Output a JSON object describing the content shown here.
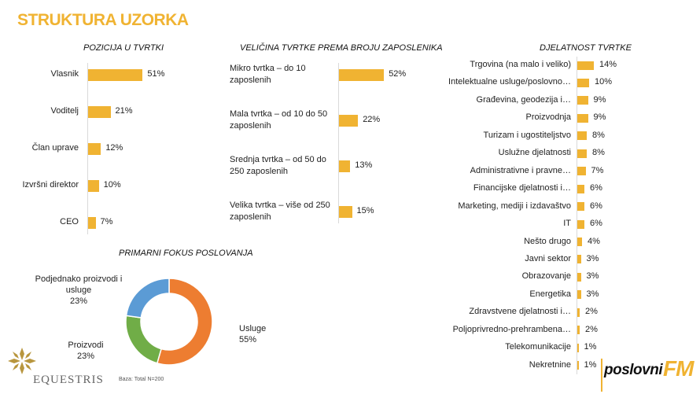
{
  "page_title": "STRUKTURA UZORKA",
  "colors": {
    "accent": "#F0B332",
    "orange": "#ED7D31",
    "green": "#70AD47",
    "blue": "#5B9BD5",
    "title": "#F0B332"
  },
  "note": "Baza: Total N=200",
  "logos": {
    "left": "EQUESTRIS",
    "right_word": "poslovni",
    "right_fm": "FM"
  },
  "chart_data": [
    {
      "type": "bar",
      "orientation": "horizontal",
      "title": "POZICIJA U TVRTKI",
      "categories": [
        "Vlasnik",
        "Voditelj",
        "Član uprave",
        "Izvršni direktor",
        "CEO"
      ],
      "values": [
        51,
        21,
        12,
        10,
        7
      ],
      "value_labels": [
        "51%",
        "21%",
        "12%",
        "10%",
        "7%"
      ],
      "unit": "%",
      "grid": false
    },
    {
      "type": "bar",
      "orientation": "horizontal",
      "title": "VELIČINA TVRTKE PREMA BROJU ZAPOSLENIKA",
      "categories": [
        "Mikro tvrtka – do 10 zaposlenih",
        "Mala tvrtka – od 10 do 50 zaposlenih",
        "Srednja tvrtka – od 50 do 250 zaposlenih",
        "Velika tvrtka – više od 250 zaposlenih"
      ],
      "values": [
        52,
        22,
        13,
        15
      ],
      "value_labels": [
        "52%",
        "22%",
        "13%",
        "15%"
      ],
      "unit": "%",
      "grid": false
    },
    {
      "type": "bar",
      "orientation": "horizontal",
      "title": "DJELATNOST TVRTKE",
      "categories": [
        "Trgovina (na malo i veliko)",
        "Intelektualne usluge/poslovno…",
        "Građevina, geodezija i…",
        "Proizvodnja",
        "Turizam i ugostiteljstvo",
        "Uslužne djelatnosti",
        "Administrativne i pravne…",
        "Financijske djelatnosti i…",
        "Marketing, mediji i izdavaštvo",
        "IT",
        "Nešto drugo",
        "Javni sektor",
        "Obrazovanje",
        "Energetika",
        "Zdravstvene djelatnosti i…",
        "Poljoprivredno-prehrambena…",
        "Telekomunikacije",
        "Nekretnine"
      ],
      "values": [
        14,
        10,
        9,
        9,
        8,
        8,
        7,
        6,
        6,
        6,
        4,
        3,
        3,
        3,
        2,
        2,
        1,
        1
      ],
      "value_labels": [
        "14%",
        "10%",
        "9%",
        "9%",
        "8%",
        "8%",
        "7%",
        "6%",
        "6%",
        "6%",
        "4%",
        "3%",
        "3%",
        "3%",
        "2%",
        "2%",
        "1%",
        "1%"
      ],
      "unit": "%",
      "grid": false
    },
    {
      "type": "pie",
      "variant": "donut",
      "title": "PRIMARNI FOKUS POSLOVANJA",
      "categories": [
        "Usluge",
        "Proizvodi",
        "Podjednako proizvodi i usluge"
      ],
      "values": [
        55,
        23,
        23
      ],
      "value_labels": [
        "55%",
        "23%",
        "23%"
      ],
      "colors": [
        "#ED7D31",
        "#70AD47",
        "#5B9BD5"
      ],
      "legend": "none"
    }
  ]
}
